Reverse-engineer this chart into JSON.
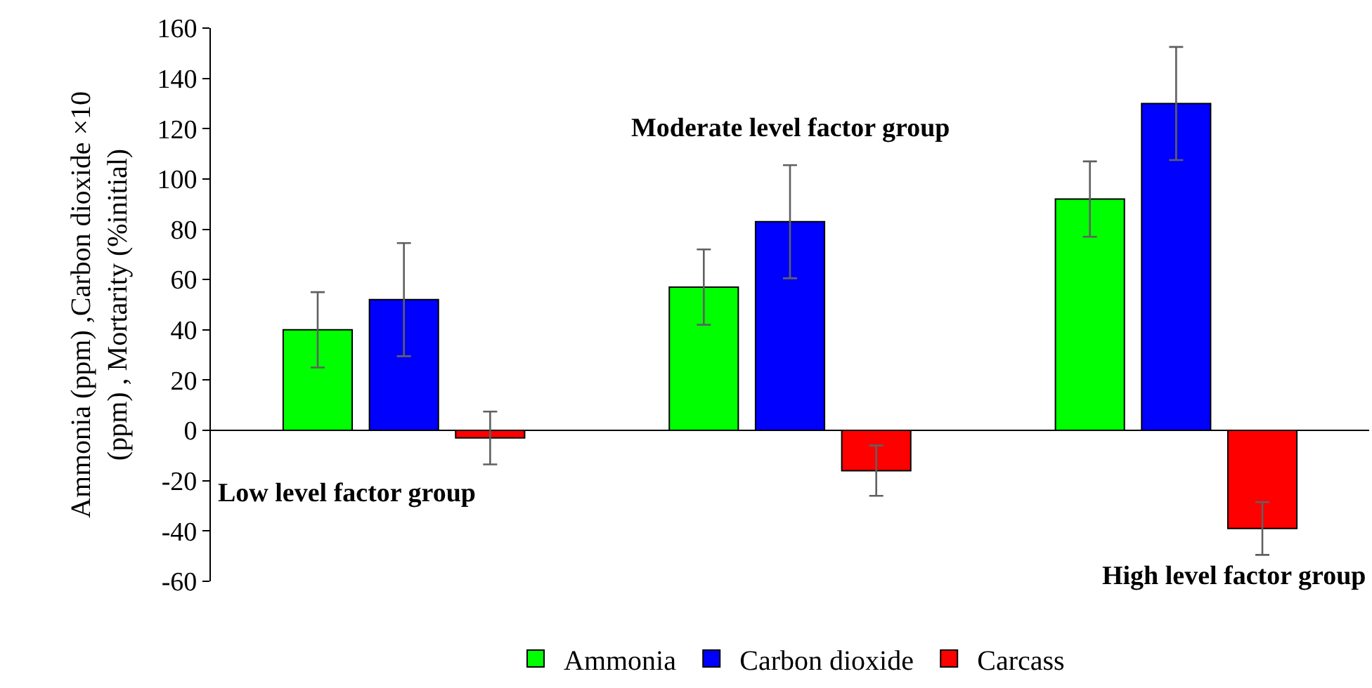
{
  "chart_data": {
    "type": "bar",
    "ylabel": "Ammonia (ppm) ,Carbon dioxide ×10 (ppm) , Mortarity (%initial)",
    "categories": [
      null,
      null,
      null
    ],
    "series": [
      {
        "name": "Ammonia",
        "color": "#00ff00",
        "values": [
          40,
          57,
          92
        ],
        "errors": [
          15,
          15,
          15
        ]
      },
      {
        "name": "Carbon dioxide",
        "color": "#0000ff",
        "values": [
          52,
          83,
          130
        ],
        "errors": [
          22.5,
          22.5,
          22.5
        ]
      },
      {
        "name": "Carcass",
        "color": "#ff0000",
        "values": [
          -3,
          -16,
          -39
        ],
        "errors": [
          10.5,
          10,
          10.5
        ]
      }
    ],
    "annotations": [
      "Low level factor group",
      "Moderate level factor group",
      "High level factor group"
    ],
    "ylim": [
      -60,
      160
    ],
    "yticks": [
      -60,
      -40,
      -20,
      0,
      20,
      40,
      60,
      80,
      100,
      120,
      140,
      160
    ],
    "legend": "bottom"
  }
}
